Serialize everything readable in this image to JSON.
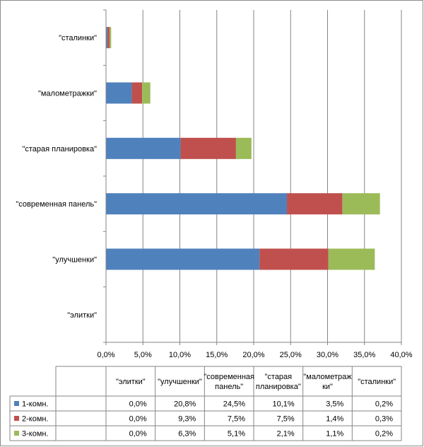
{
  "chart_data": {
    "type": "bar",
    "orientation": "horizontal",
    "stacked": true,
    "categories": [
      "\"элитки\"",
      "\"улучшенки\"",
      "\"современная панель\"",
      "\"старая планировка\"",
      "\"малометражки\"",
      "\"сталинки\""
    ],
    "table_headers": [
      [
        "\"элитки\""
      ],
      [
        "\"улучшенки\""
      ],
      [
        "\"современная",
        "панель\""
      ],
      [
        "\"старая",
        "планировка\""
      ],
      [
        "\"малометраж",
        "ки\""
      ],
      [
        "\"сталинки\""
      ]
    ],
    "series": [
      {
        "name": "1-комн.",
        "color": "#4f81bd",
        "values": [
          0.0,
          20.8,
          24.5,
          10.1,
          3.5,
          0.2
        ],
        "labels": [
          "0,0%",
          "20,8%",
          "24,5%",
          "10,1%",
          "3,5%",
          "0,2%"
        ]
      },
      {
        "name": "2-комн.",
        "color": "#c0504d",
        "values": [
          0.0,
          9.3,
          7.5,
          7.5,
          1.4,
          0.3
        ],
        "labels": [
          "0,0%",
          "9,3%",
          "7,5%",
          "7,5%",
          "1,4%",
          "0,3%"
        ]
      },
      {
        "name": "3-комн.",
        "color": "#9bbb59",
        "values": [
          0.0,
          6.3,
          5.1,
          2.1,
          1.1,
          0.2
        ],
        "labels": [
          "0,0%",
          "6,3%",
          "5,1%",
          "2,1%",
          "1,1%",
          "0,2%"
        ]
      }
    ],
    "xlim": [
      0,
      40
    ],
    "xticks": [
      0,
      5,
      10,
      15,
      20,
      25,
      30,
      35,
      40
    ],
    "xtick_labels": [
      "0,0%",
      "5,0%",
      "10,0%",
      "15,0%",
      "20,0%",
      "25,0%",
      "30,0%",
      "35,0%",
      "40,0%"
    ],
    "grid": "vertical",
    "legend": "data-table",
    "title": "",
    "xlabel": "",
    "ylabel": ""
  }
}
